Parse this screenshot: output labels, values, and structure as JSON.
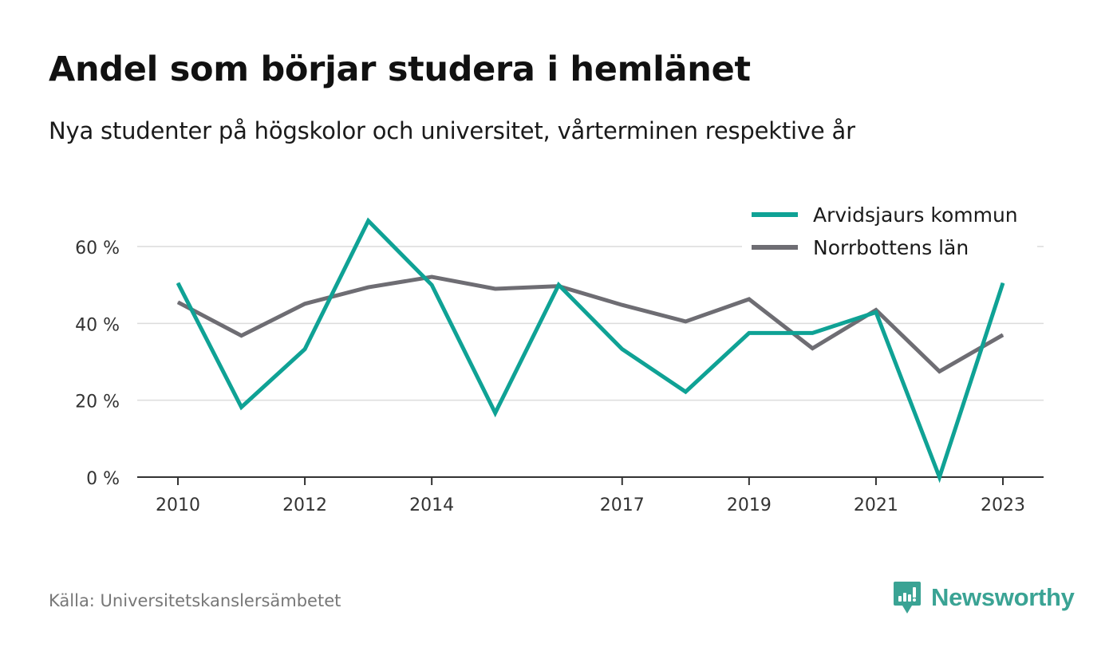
{
  "header": {
    "title": "Andel som börjar studera i hemlänet",
    "subtitle": "Nya studenter på högskolor och universitet, vårterminen respektive år"
  },
  "footer": {
    "source": "Källa: Universitetskanslersämbetet",
    "brand": "Newsworthy"
  },
  "colors": {
    "accent": "#0fa295",
    "secondary": "#6e6d73",
    "grid": "#dcdcdc",
    "axis": "#333333",
    "brand": "#3aa394"
  },
  "chart_data": {
    "type": "line",
    "x": [
      2010,
      2011,
      2012,
      2013,
      2014,
      2015,
      2016,
      2017,
      2018,
      2019,
      2020,
      2021,
      2022,
      2023
    ],
    "x_tick_labels": [
      "2010",
      "2012",
      "2014",
      "2017",
      "2019",
      "2021",
      "2023"
    ],
    "y_ticks": [
      0,
      20,
      40,
      60
    ],
    "y_tick_labels": [
      "0 %",
      "20 %",
      "40 %",
      "60 %"
    ],
    "ylim": [
      0,
      70
    ],
    "grid": true,
    "legend_position": "top-right",
    "series": [
      {
        "name": "Arvidsjaurs kommun",
        "color": "#0fa295",
        "values": [
          50.5,
          18.2,
          33.3,
          66.7,
          50.0,
          16.7,
          50.0,
          33.3,
          22.2,
          37.5,
          37.5,
          42.9,
          0.0,
          50.5
        ]
      },
      {
        "name": "Norrbottens län",
        "color": "#6e6d73",
        "values": [
          45.5,
          36.8,
          45.1,
          49.4,
          52.1,
          49.0,
          49.7,
          44.8,
          40.5,
          46.3,
          33.5,
          43.5,
          27.5,
          37.0
        ]
      }
    ]
  }
}
